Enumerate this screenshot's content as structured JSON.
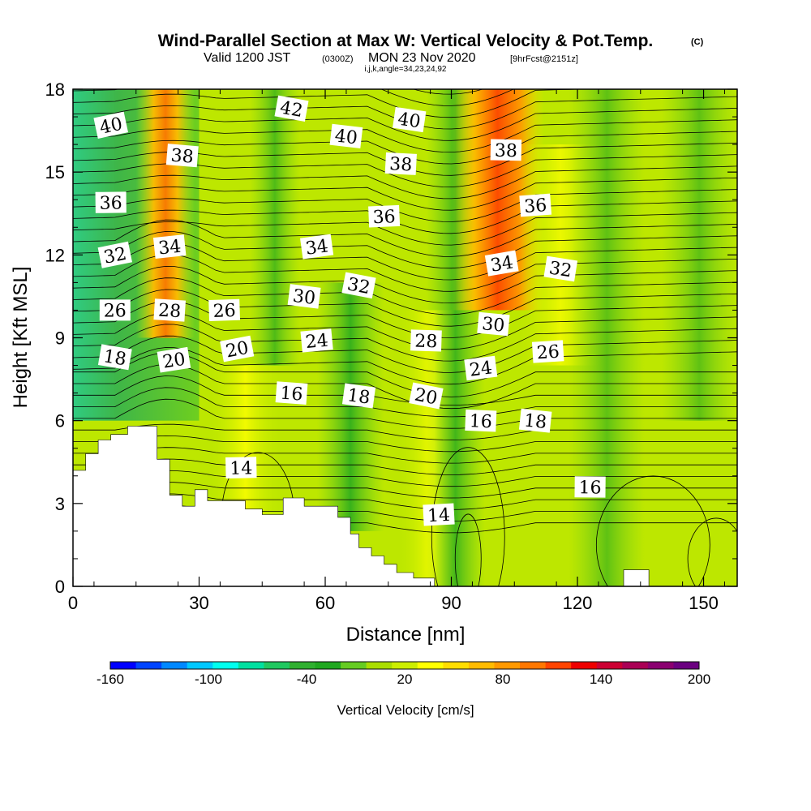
{
  "header": {
    "title": "Wind-Parallel Section at Max W: Vertical Velocity & Pot.Temp.",
    "copyright": "(C)",
    "valid_prefix": "Valid 1200 JST",
    "valid_utc": "(0300Z)",
    "valid_date": "MON 23 Nov 2020",
    "forecast_info": "[9hrFcst@2151z]",
    "section_params": "i,j,k,angle=34,23,24,92"
  },
  "colorbar": {
    "title": "Vertical Velocity [cm/s]",
    "tick_labels": [
      "-160",
      "-100",
      "-40",
      "20",
      "80",
      "140",
      "200"
    ],
    "colors": [
      "#0000ff",
      "#0044ff",
      "#0088ff",
      "#00c8ff",
      "#00ffee",
      "#00e0a0",
      "#20c860",
      "#30b030",
      "#20a820",
      "#66cc22",
      "#aadd00",
      "#ccee00",
      "#ffff00",
      "#ffdd00",
      "#ffbb00",
      "#ff9900",
      "#ff7700",
      "#ff4400",
      "#ee0000",
      "#cc0033",
      "#aa0055",
      "#8b0070",
      "#6b0080"
    ]
  },
  "chart_data": {
    "type": "heatmap",
    "xlabel": "Distance [nm]",
    "ylabel": "Height [Kft MSL]",
    "xlim": [
      0,
      158
    ],
    "ylim": [
      0,
      18
    ],
    "x_ticks": [
      0,
      30,
      60,
      90,
      120,
      150
    ],
    "y_ticks": [
      0,
      3,
      6,
      9,
      12,
      15,
      18
    ],
    "fill_variable": "Vertical Velocity [cm/s]",
    "fill_range": [
      -160,
      200
    ],
    "contour_variable": "Pot.Temp.",
    "contour_labels": [
      {
        "text": "40",
        "x": 9,
        "y": 16.7
      },
      {
        "text": "42",
        "x": 52,
        "y": 17.3
      },
      {
        "text": "40",
        "x": 80,
        "y": 16.9
      },
      {
        "text": "40",
        "x": 65,
        "y": 16.3
      },
      {
        "text": "38",
        "x": 26,
        "y": 15.6
      },
      {
        "text": "38",
        "x": 78,
        "y": 15.3
      },
      {
        "text": "38",
        "x": 103,
        "y": 15.8
      },
      {
        "text": "36",
        "x": 9,
        "y": 13.9
      },
      {
        "text": "36",
        "x": 74,
        "y": 13.4
      },
      {
        "text": "36",
        "x": 110,
        "y": 13.8
      },
      {
        "text": "34",
        "x": 23,
        "y": 12.3
      },
      {
        "text": "34",
        "x": 58,
        "y": 12.3
      },
      {
        "text": "34",
        "x": 102,
        "y": 11.7
      },
      {
        "text": "32",
        "x": 10,
        "y": 12.0
      },
      {
        "text": "32",
        "x": 68,
        "y": 10.9
      },
      {
        "text": "32",
        "x": 116,
        "y": 11.5
      },
      {
        "text": "30",
        "x": 55,
        "y": 10.5
      },
      {
        "text": "30",
        "x": 100,
        "y": 9.5
      },
      {
        "text": "28",
        "x": 23,
        "y": 10.0
      },
      {
        "text": "28",
        "x": 84,
        "y": 8.9
      },
      {
        "text": "26",
        "x": 10,
        "y": 10.0
      },
      {
        "text": "26",
        "x": 36,
        "y": 10.0
      },
      {
        "text": "26",
        "x": 113,
        "y": 8.5
      },
      {
        "text": "24",
        "x": 58,
        "y": 8.9
      },
      {
        "text": "24",
        "x": 97,
        "y": 7.9
      },
      {
        "text": "20",
        "x": 24,
        "y": 8.2
      },
      {
        "text": "20",
        "x": 39,
        "y": 8.6
      },
      {
        "text": "20",
        "x": 84,
        "y": 6.9
      },
      {
        "text": "18",
        "x": 10,
        "y": 8.3
      },
      {
        "text": "18",
        "x": 68,
        "y": 6.9
      },
      {
        "text": "18",
        "x": 110,
        "y": 6.0
      },
      {
        "text": "16",
        "x": 52,
        "y": 7.0
      },
      {
        "text": "16",
        "x": 97,
        "y": 6.0
      },
      {
        "text": "16",
        "x": 123,
        "y": 3.6
      },
      {
        "text": "14",
        "x": 40,
        "y": 4.3
      },
      {
        "text": "14",
        "x": 87,
        "y": 2.6
      }
    ],
    "terrain": {
      "x": [
        0,
        3,
        3,
        6,
        6,
        9,
        9,
        13,
        13,
        20,
        20,
        23,
        23,
        26,
        26,
        29,
        29,
        32,
        32,
        41,
        41,
        45,
        45,
        50,
        50,
        55,
        55,
        63,
        63,
        66,
        66,
        68,
        68,
        71,
        71,
        74,
        74,
        77,
        77,
        81,
        81,
        86,
        86,
        131,
        131,
        137,
        137,
        158
      ],
      "height": [
        4.2,
        4.2,
        4.8,
        4.8,
        5.3,
        5.3,
        5.5,
        5.5,
        5.8,
        5.8,
        4.6,
        4.6,
        3.3,
        3.3,
        2.9,
        2.9,
        3.5,
        3.5,
        3.1,
        3.1,
        2.8,
        2.8,
        2.6,
        2.6,
        3.2,
        3.2,
        2.9,
        2.9,
        2.5,
        2.5,
        1.9,
        1.9,
        1.4,
        1.4,
        1.1,
        1.1,
        0.8,
        0.8,
        0.5,
        0.5,
        0.3,
        0.3,
        0.0,
        0.0,
        0.6,
        0.6,
        0.0,
        0.0
      ]
    },
    "bands": [
      {
        "type": "updraft",
        "x": 22,
        "peak": 120,
        "range": [
          10,
          18
        ]
      },
      {
        "type": "updraft",
        "x": 98,
        "peak": 150,
        "range": [
          12,
          18
        ]
      },
      {
        "type": "updraft",
        "x": 107,
        "peak": 70,
        "range": [
          12,
          18
        ]
      },
      {
        "type": "downdraft",
        "x": 3,
        "peak": -100,
        "range": [
          12,
          18
        ]
      },
      {
        "type": "downdraft",
        "x": 16,
        "peak": -90,
        "range": [
          11,
          16
        ]
      },
      {
        "type": "downdraft",
        "x": 65,
        "peak": -70,
        "range": [
          2,
          9
        ]
      },
      {
        "type": "downdraft",
        "x": 90,
        "peak": -60,
        "range": [
          0,
          18
        ]
      }
    ]
  }
}
